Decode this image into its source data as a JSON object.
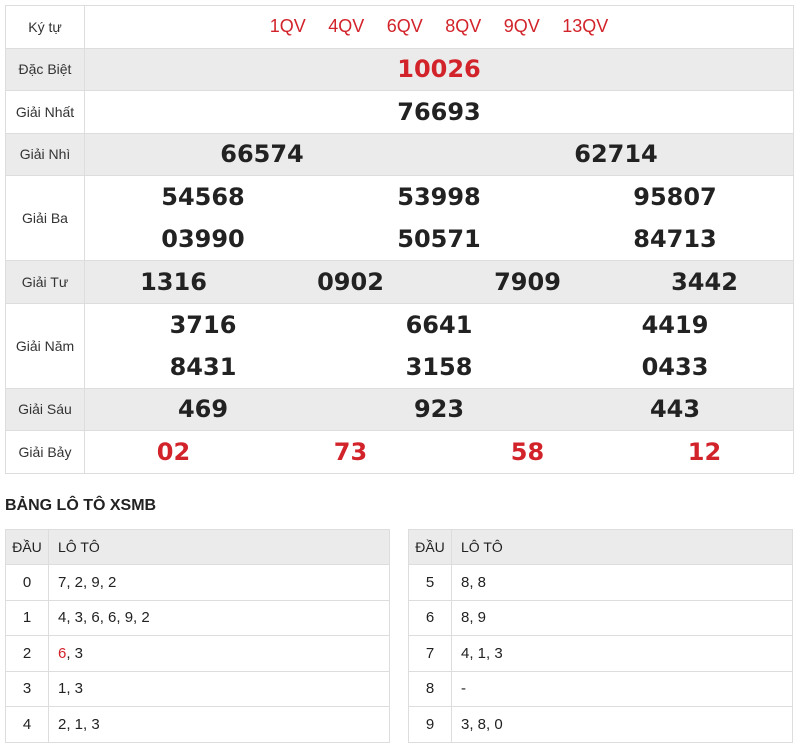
{
  "results": {
    "kytu_label": "Ký tự",
    "kytu_values": [
      "1QV",
      "4QV",
      "6QV",
      "8QV",
      "9QV",
      "13QV"
    ],
    "db_label": "Đặc Biệt",
    "db": "10026",
    "g1_label": "Giải Nhất",
    "g1": "76693",
    "g2_label": "Giải Nhì",
    "g2": [
      "66574",
      "62714"
    ],
    "g3_label": "Giải Ba",
    "g3": [
      "54568",
      "53998",
      "95807",
      "03990",
      "50571",
      "84713"
    ],
    "g4_label": "Giải Tư",
    "g4": [
      "1316",
      "0902",
      "7909",
      "3442"
    ],
    "g5_label": "Giải Năm",
    "g5": [
      "3716",
      "6641",
      "4419",
      "8431",
      "3158",
      "0433"
    ],
    "g6_label": "Giải Sáu",
    "g6": [
      "469",
      "923",
      "443"
    ],
    "g7_label": "Giải Bảy",
    "g7": [
      "02",
      "73",
      "58",
      "12"
    ]
  },
  "loto": {
    "title": "BẢNG LÔ TÔ XSMB",
    "head_dau": "ĐẦU",
    "head_loto": "LÔ TÔ",
    "highlight_color": "#d2232a",
    "left": [
      {
        "dau": "0",
        "parts": [
          {
            "t": "7, 2, 9, 2",
            "hl": false
          }
        ]
      },
      {
        "dau": "1",
        "parts": [
          {
            "t": "4, 3, 6, 6, 9, 2",
            "hl": false
          }
        ]
      },
      {
        "dau": "2",
        "parts": [
          {
            "t": "6",
            "hl": true
          },
          {
            "t": ", 3",
            "hl": false
          }
        ]
      },
      {
        "dau": "3",
        "parts": [
          {
            "t": "1, 3",
            "hl": false
          }
        ]
      },
      {
        "dau": "4",
        "parts": [
          {
            "t": "2, 1, 3",
            "hl": false
          }
        ]
      }
    ],
    "right": [
      {
        "dau": "5",
        "parts": [
          {
            "t": "8, 8",
            "hl": false
          }
        ]
      },
      {
        "dau": "6",
        "parts": [
          {
            "t": "8, 9",
            "hl": false
          }
        ]
      },
      {
        "dau": "7",
        "parts": [
          {
            "t": "4, 1, 3",
            "hl": false
          }
        ]
      },
      {
        "dau": "8",
        "parts": [
          {
            "t": "-",
            "hl": false
          }
        ]
      },
      {
        "dau": "9",
        "parts": [
          {
            "t": "3, 8, 0",
            "hl": false
          }
        ]
      }
    ]
  }
}
